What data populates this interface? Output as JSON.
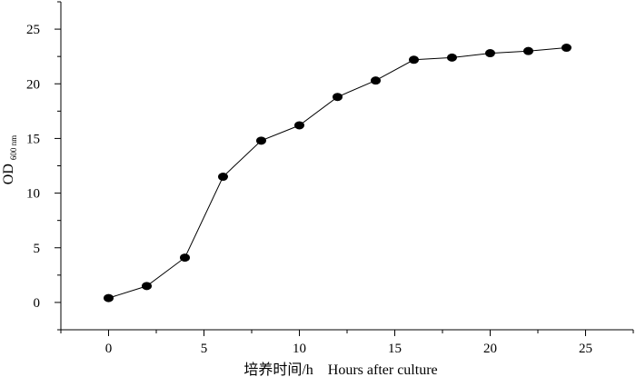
{
  "chart_data": {
    "type": "line",
    "title": "",
    "xlabel": "培养时间/h    Hours after culture",
    "ylabel": {
      "main": "OD",
      "subscript": "600 nm"
    },
    "xlim": [
      -2.5,
      27.5
    ],
    "ylim": [
      -2.5,
      27.5
    ],
    "xticks": [
      0,
      5,
      10,
      15,
      20,
      25
    ],
    "yticks": [
      0,
      5,
      10,
      15,
      20,
      25
    ],
    "xtick_labels": [
      "0",
      "5",
      "10",
      "15",
      "20",
      "25"
    ],
    "ytick_labels": [
      "0",
      "5",
      "10",
      "15",
      "20",
      "25"
    ],
    "grid": false,
    "legend": "none",
    "series": [
      {
        "x": [
          0,
          2,
          4,
          6,
          8,
          10,
          12,
          14,
          16,
          18,
          20,
          22,
          24
        ],
        "y": [
          0.4,
          1.5,
          4.1,
          11.5,
          14.8,
          16.2,
          18.8,
          20.3,
          22.2,
          22.4,
          22.8,
          23.0,
          23.3
        ],
        "color": "#000000",
        "marker": "filled-ellipse"
      }
    ]
  }
}
